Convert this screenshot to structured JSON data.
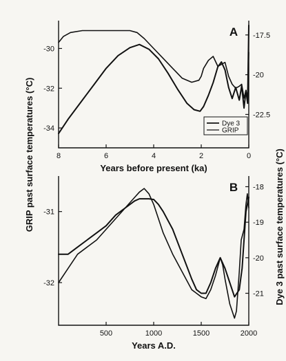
{
  "ylabel_left": "GRIP past surface temperatures (°C)",
  "ylabel_right": "Dye 3 past surface temperatures (°C)",
  "colors": {
    "ink": "#111111",
    "paper": "#f7f6f2"
  },
  "chart_data": [
    {
      "type": "line",
      "panel_label": "A",
      "xlabel": "Years before present (ka)",
      "xlim": [
        8,
        0
      ],
      "ylim_left": [
        -35,
        -28.6
      ],
      "ylim_right": [
        -24.6,
        -16.6
      ],
      "x_ticks": [
        8,
        6,
        4,
        2,
        0
      ],
      "y_ticks_left": [
        -30,
        -32,
        -34
      ],
      "y_ticks_right": [
        -17.5,
        -20,
        -22.5
      ],
      "legend_position": "bottom-right",
      "series": [
        {
          "name": "Dye 3",
          "axis": "right",
          "x": [
            8.0,
            7.6,
            7.0,
            6.5,
            6.0,
            5.5,
            5.0,
            4.6,
            4.2,
            3.8,
            3.4,
            3.0,
            2.6,
            2.3,
            2.05,
            1.9,
            1.7,
            1.5,
            1.3,
            1.15,
            1.0,
            0.85,
            0.7,
            0.55,
            0.4,
            0.3,
            0.2,
            0.12,
            0.05,
            0.0
          ],
          "y": [
            -23.7,
            -22.8,
            -21.6,
            -20.6,
            -19.6,
            -18.8,
            -18.3,
            -18.1,
            -18.4,
            -19.0,
            -19.9,
            -20.9,
            -21.8,
            -22.2,
            -22.3,
            -22.0,
            -21.3,
            -20.5,
            -19.5,
            -19.2,
            -19.7,
            -20.8,
            -21.5,
            -20.8,
            -21.6,
            -20.7,
            -22.1,
            -21.0,
            -21.8,
            -16.9
          ]
        },
        {
          "name": "GRIP",
          "axis": "left",
          "x": [
            8.0,
            7.8,
            7.5,
            7.0,
            6.5,
            6.0,
            5.5,
            5.0,
            4.7,
            4.4,
            4.0,
            3.6,
            3.2,
            2.8,
            2.4,
            2.1,
            2.0,
            1.9,
            1.7,
            1.5,
            1.3,
            1.15,
            1.0,
            0.85,
            0.7,
            0.55,
            0.4,
            0.3,
            0.2,
            0.12,
            0.05,
            0.0
          ],
          "y": [
            -29.7,
            -29.4,
            -29.2,
            -29.1,
            -29.1,
            -29.1,
            -29.1,
            -29.1,
            -29.2,
            -29.5,
            -30.0,
            -30.5,
            -31.0,
            -31.5,
            -31.7,
            -31.6,
            -31.4,
            -31.0,
            -30.6,
            -30.4,
            -30.9,
            -30.8,
            -30.7,
            -31.4,
            -31.8,
            -32.0,
            -31.9,
            -31.8,
            -32.5,
            -32.1,
            -32.6,
            -30.2
          ]
        }
      ]
    },
    {
      "type": "line",
      "panel_label": "B",
      "xlabel": "Years A.D.",
      "xlim": [
        0,
        2000
      ],
      "ylim_left": [
        -32.6,
        -30.5
      ],
      "ylim_right": [
        -21.9,
        -17.7
      ],
      "x_ticks": [
        500,
        1000,
        1500,
        2000
      ],
      "y_ticks_left": [
        -31,
        -32
      ],
      "y_ticks_right": [
        -18,
        -19,
        -20,
        -21
      ],
      "series": [
        {
          "axis": "left",
          "x": [
            0,
            100,
            200,
            300,
            400,
            500,
            600,
            700,
            800,
            850,
            900,
            950,
            1000,
            1050,
            1100,
            1200,
            1300,
            1400,
            1450,
            1500,
            1550,
            1600,
            1650,
            1700,
            1750,
            1800,
            1850,
            1900,
            1930,
            1950,
            1970,
            2000
          ],
          "y": [
            -31.6,
            -31.6,
            -31.5,
            -31.4,
            -31.3,
            -31.2,
            -31.05,
            -30.95,
            -30.85,
            -30.82,
            -30.82,
            -30.82,
            -30.83,
            -30.9,
            -31.0,
            -31.25,
            -31.6,
            -31.95,
            -32.1,
            -32.15,
            -32.15,
            -32.0,
            -31.8,
            -31.65,
            -31.8,
            -32.0,
            -32.2,
            -32.1,
            -31.8,
            -31.4,
            -31.0,
            -30.8
          ]
        },
        {
          "axis": "right",
          "x": [
            0,
            100,
            200,
            300,
            400,
            500,
            600,
            700,
            800,
            850,
            900,
            950,
            1000,
            1050,
            1100,
            1200,
            1300,
            1400,
            1450,
            1500,
            1550,
            1600,
            1650,
            1700,
            1725,
            1750,
            1800,
            1850,
            1870,
            1900,
            1920,
            1950,
            1970,
            1985,
            2000
          ],
          "y": [
            -20.7,
            -20.3,
            -19.9,
            -19.7,
            -19.5,
            -19.2,
            -18.9,
            -18.6,
            -18.3,
            -18.15,
            -18.05,
            -18.2,
            -18.5,
            -18.9,
            -19.3,
            -19.9,
            -20.4,
            -20.9,
            -21.0,
            -21.1,
            -21.15,
            -20.9,
            -20.5,
            -20.0,
            -20.2,
            -20.6,
            -21.3,
            -21.7,
            -21.5,
            -20.4,
            -19.5,
            -19.2,
            -18.5,
            -18.2,
            -18.6
          ]
        }
      ]
    }
  ]
}
